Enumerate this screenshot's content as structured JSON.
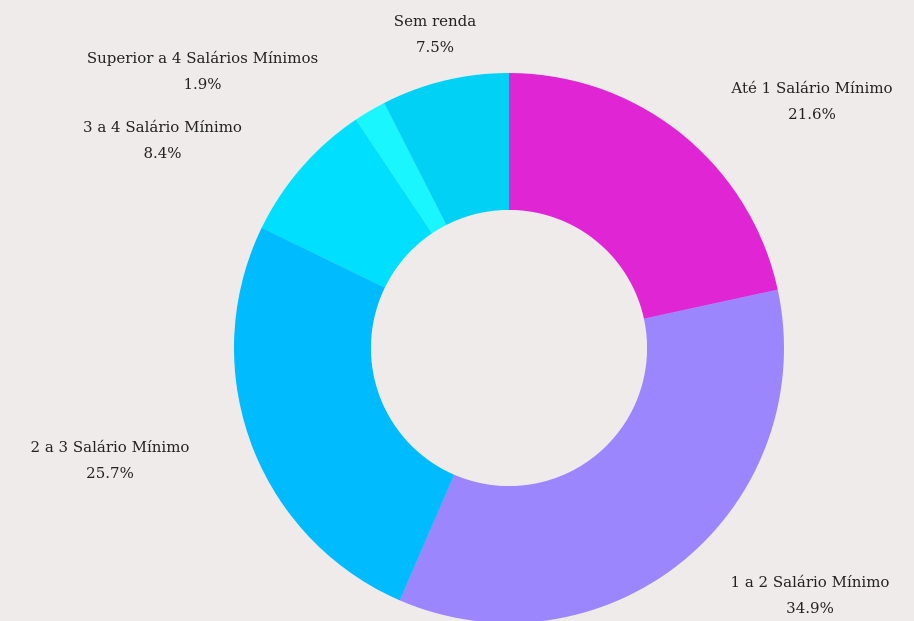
{
  "chart_data": {
    "type": "pie",
    "donut": true,
    "slices": [
      {
        "label": "Até 1 Salário Mínimo",
        "value": 21.6,
        "value_label": "21.6%",
        "color": "#e026d4"
      },
      {
        "label": "1 a 2 Salário Mínimo",
        "value": 34.9,
        "value_label": "34.9%",
        "color": "#9b86fd"
      },
      {
        "label": "2 a 3 Salário Mínimo",
        "value": 25.7,
        "value_label": "25.7%",
        "color": "#00bbfd"
      },
      {
        "label": "3 a 4 Salário Mínimo",
        "value": 8.4,
        "value_label": "8.4%",
        "color": "#00dffd"
      },
      {
        "label": "Superior a 4 Salários Mínimos",
        "value": 1.9,
        "value_label": "1.9%",
        "color": "#1af6fd"
      },
      {
        "label": "Sem renda",
        "value": 7.5,
        "value_label": "7.5%",
        "color": "#00d1f5"
      }
    ]
  },
  "colors": {
    "background": "#efebea",
    "hole": "#efebea"
  }
}
